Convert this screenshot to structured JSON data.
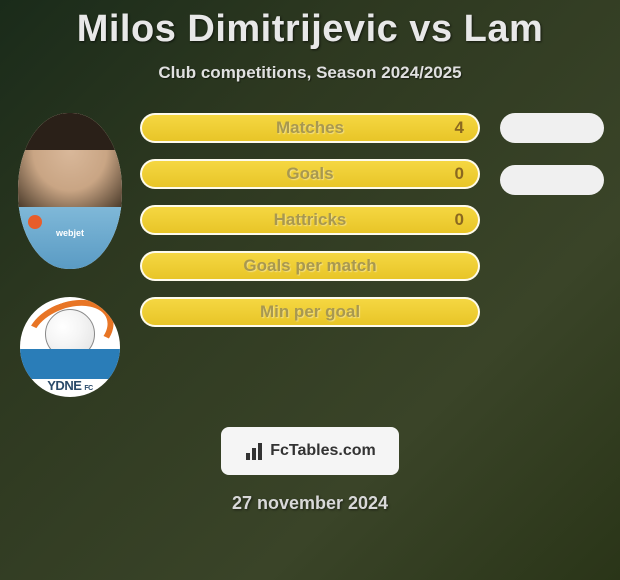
{
  "header": {
    "title": "Milos Dimitrijevic vs Lam",
    "subtitle": "Club competitions, Season 2024/2025"
  },
  "player": {
    "jersey_sponsor": "webjet",
    "club_abbrev": "YDNE",
    "club_suffix": "FC"
  },
  "stats": {
    "rows": [
      {
        "label": "Matches",
        "value": "4",
        "has_right_pill": true
      },
      {
        "label": "Goals",
        "value": "0",
        "has_right_pill": true
      },
      {
        "label": "Hattricks",
        "value": "0",
        "has_right_pill": false
      },
      {
        "label": "Goals per match",
        "value": "",
        "has_right_pill": false
      },
      {
        "label": "Min per goal",
        "value": "",
        "has_right_pill": false
      }
    ],
    "bar_color": "#e8c528",
    "bar_border": "#ffffff",
    "label_color": "#a89850",
    "value_color": "#8a6820",
    "pill_color": "#f0f0f0"
  },
  "footer": {
    "brand": "FcTables.com",
    "date": "27 november 2024"
  },
  "colors": {
    "background_from": "#1a2b1a",
    "background_to": "#2a3518",
    "title_text": "#e8e8e8",
    "subtitle_text": "#e0e0e0",
    "jersey": "#7fb8d8",
    "logo_orange": "#e87525",
    "logo_blue": "#2a7db8"
  }
}
